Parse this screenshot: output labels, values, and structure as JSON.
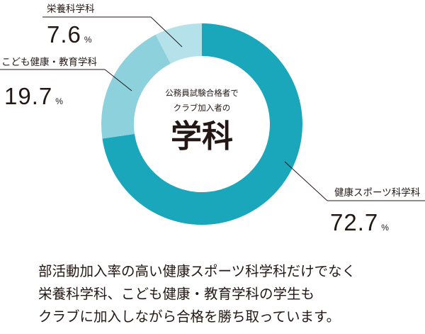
{
  "chart_data": {
    "type": "pie",
    "center_text": {
      "subtitle_lines": [
        "公務員試験合格者で",
        "クラブ加入者の"
      ],
      "main": "学科"
    },
    "slices": [
      {
        "label": "健康スポーツ科学科",
        "value": 72.7,
        "display": "72.7",
        "unit": "%",
        "color": "#1aa6bb"
      },
      {
        "label": "こども健康・教育学科",
        "value": 19.7,
        "display": "19.7",
        "unit": "%",
        "color": "#8dd1dc"
      },
      {
        "label": "栄養科学科",
        "value": 7.6,
        "display": "7.6",
        "unit": "%",
        "color": "#b5e2ea"
      }
    ]
  },
  "caption": {
    "lines": [
      "部活動加入率の高い健康スポーツ科学科だけでなく",
      "栄養科学科、こども健康・教育学科の学生も",
      "クラブに加入しながら合格を勝ち取っています。"
    ]
  }
}
